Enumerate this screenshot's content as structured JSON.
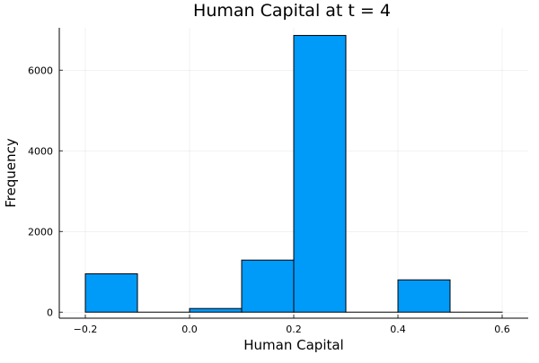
{
  "chart_data": {
    "type": "bar",
    "title": "Human Capital at t = 4",
    "xlabel": "Human Capital",
    "ylabel": "Frequency",
    "bin_edges": [
      -0.2,
      -0.1,
      0.0,
      0.1,
      0.2,
      0.3,
      0.4,
      0.5,
      0.6
    ],
    "values": [
      950,
      0,
      90,
      1290,
      6860,
      0,
      800,
      0
    ],
    "xlim": [
      -0.25,
      0.65
    ],
    "ylim": [
      -150,
      7050
    ],
    "x_ticks": [
      -0.2,
      0.0,
      0.2,
      0.4,
      0.6
    ],
    "x_tick_labels": [
      "−0.2",
      "0.0",
      "0.2",
      "0.4",
      "0.6"
    ],
    "y_ticks": [
      0,
      2000,
      4000,
      6000
    ],
    "y_tick_labels": [
      "0",
      "2000",
      "4000",
      "6000"
    ],
    "grid": true,
    "legend": "none",
    "bar_color": "#009af9",
    "bar_edge_color": "#000000"
  }
}
